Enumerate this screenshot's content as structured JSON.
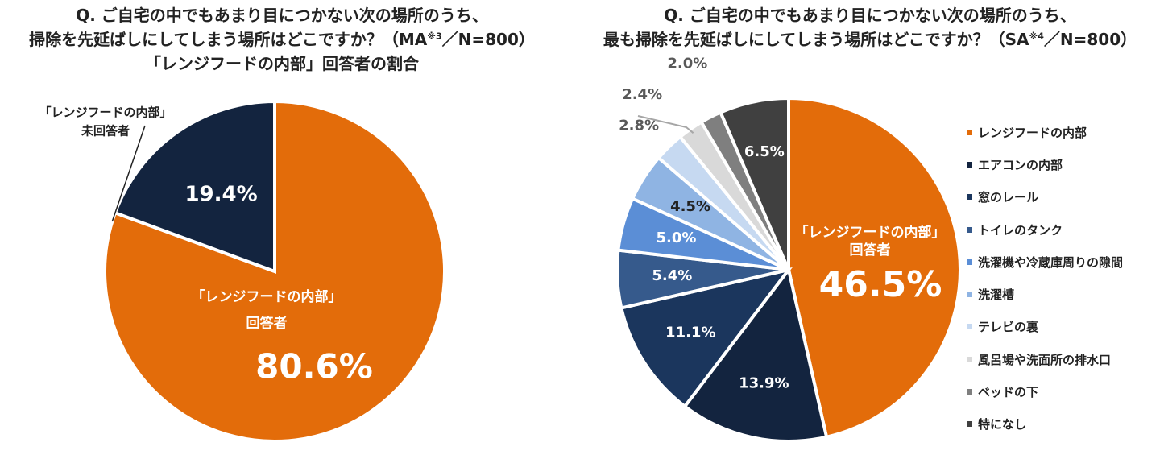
{
  "left_title": {
    "line1": "Q. ご自宅の中でもあまり目につかない次の場所のうち、",
    "line2_text": "掃除を先延ばしにしてしまう場所はどこですか？（MA",
    "line2_sup": "※3",
    "line2_tail": "／N=800）",
    "line3": "「レンジフードの内部」回答者の割合"
  },
  "right_title": {
    "line1": "Q. ご自宅の中でもあまり目につかない次の場所のうち、",
    "line2_text": "最も掃除を先延ばしにしてしまう場所はどこですか？（SA",
    "line2_sup": "※4",
    "line2_tail": "／N=800）"
  },
  "chart_data": [
    {
      "type": "pie",
      "title": "「レンジフードの内部」回答者の割合",
      "slices": [
        {
          "label": "「レンジフードの内部」回答者",
          "value": 80.6,
          "value_label": "80.6%",
          "color": "#E36C0A"
        },
        {
          "label": "「レンジフードの内部」未回答者",
          "value": 19.4,
          "value_label": "19.4%",
          "color": "#13243F"
        }
      ],
      "callout_lines": [
        "「レンジフードの内部」",
        "未回答者"
      ],
      "inner_label_lines": [
        "「レンジフードの内部」",
        "回答者"
      ]
    },
    {
      "type": "pie",
      "title": "最も掃除を先延ばしにしてしまう場所",
      "legend_position": "right",
      "slices": [
        {
          "label": "レンジフードの内部",
          "value": 46.5,
          "value_label": "46.5%",
          "color": "#E36C0A"
        },
        {
          "label": "エアコンの内部",
          "value": 13.9,
          "value_label": "13.9%",
          "color": "#13243F"
        },
        {
          "label": "窓のレール",
          "value": 11.1,
          "value_label": "11.1%",
          "color": "#1B365D"
        },
        {
          "label": "トイレのタンク",
          "value": 5.4,
          "value_label": "5.4%",
          "color": "#365A8C"
        },
        {
          "label": "洗濯機や冷蔵庫周りの隙間",
          "value": 5.0,
          "value_label": "5.0%",
          "color": "#5B8ED6"
        },
        {
          "label": "洗濯槽",
          "value": 4.5,
          "value_label": "4.5%",
          "color": "#8FB4E3"
        },
        {
          "label": "テレビの裏",
          "value": 2.8,
          "value_label": "2.8%",
          "color": "#C6D9F1"
        },
        {
          "label": "風呂場や洗面所の排水口",
          "value": 2.4,
          "value_label": "2.4%",
          "color": "#D9D9D9"
        },
        {
          "label": "ベッドの下",
          "value": 2.0,
          "value_label": "2.0%",
          "color": "#7F7F7F"
        },
        {
          "label": "特になし",
          "value": 6.5,
          "value_label": "6.5%",
          "color": "#404040"
        }
      ],
      "inner_label_lines": [
        "「レンジフードの内部」",
        "回答者"
      ]
    }
  ]
}
